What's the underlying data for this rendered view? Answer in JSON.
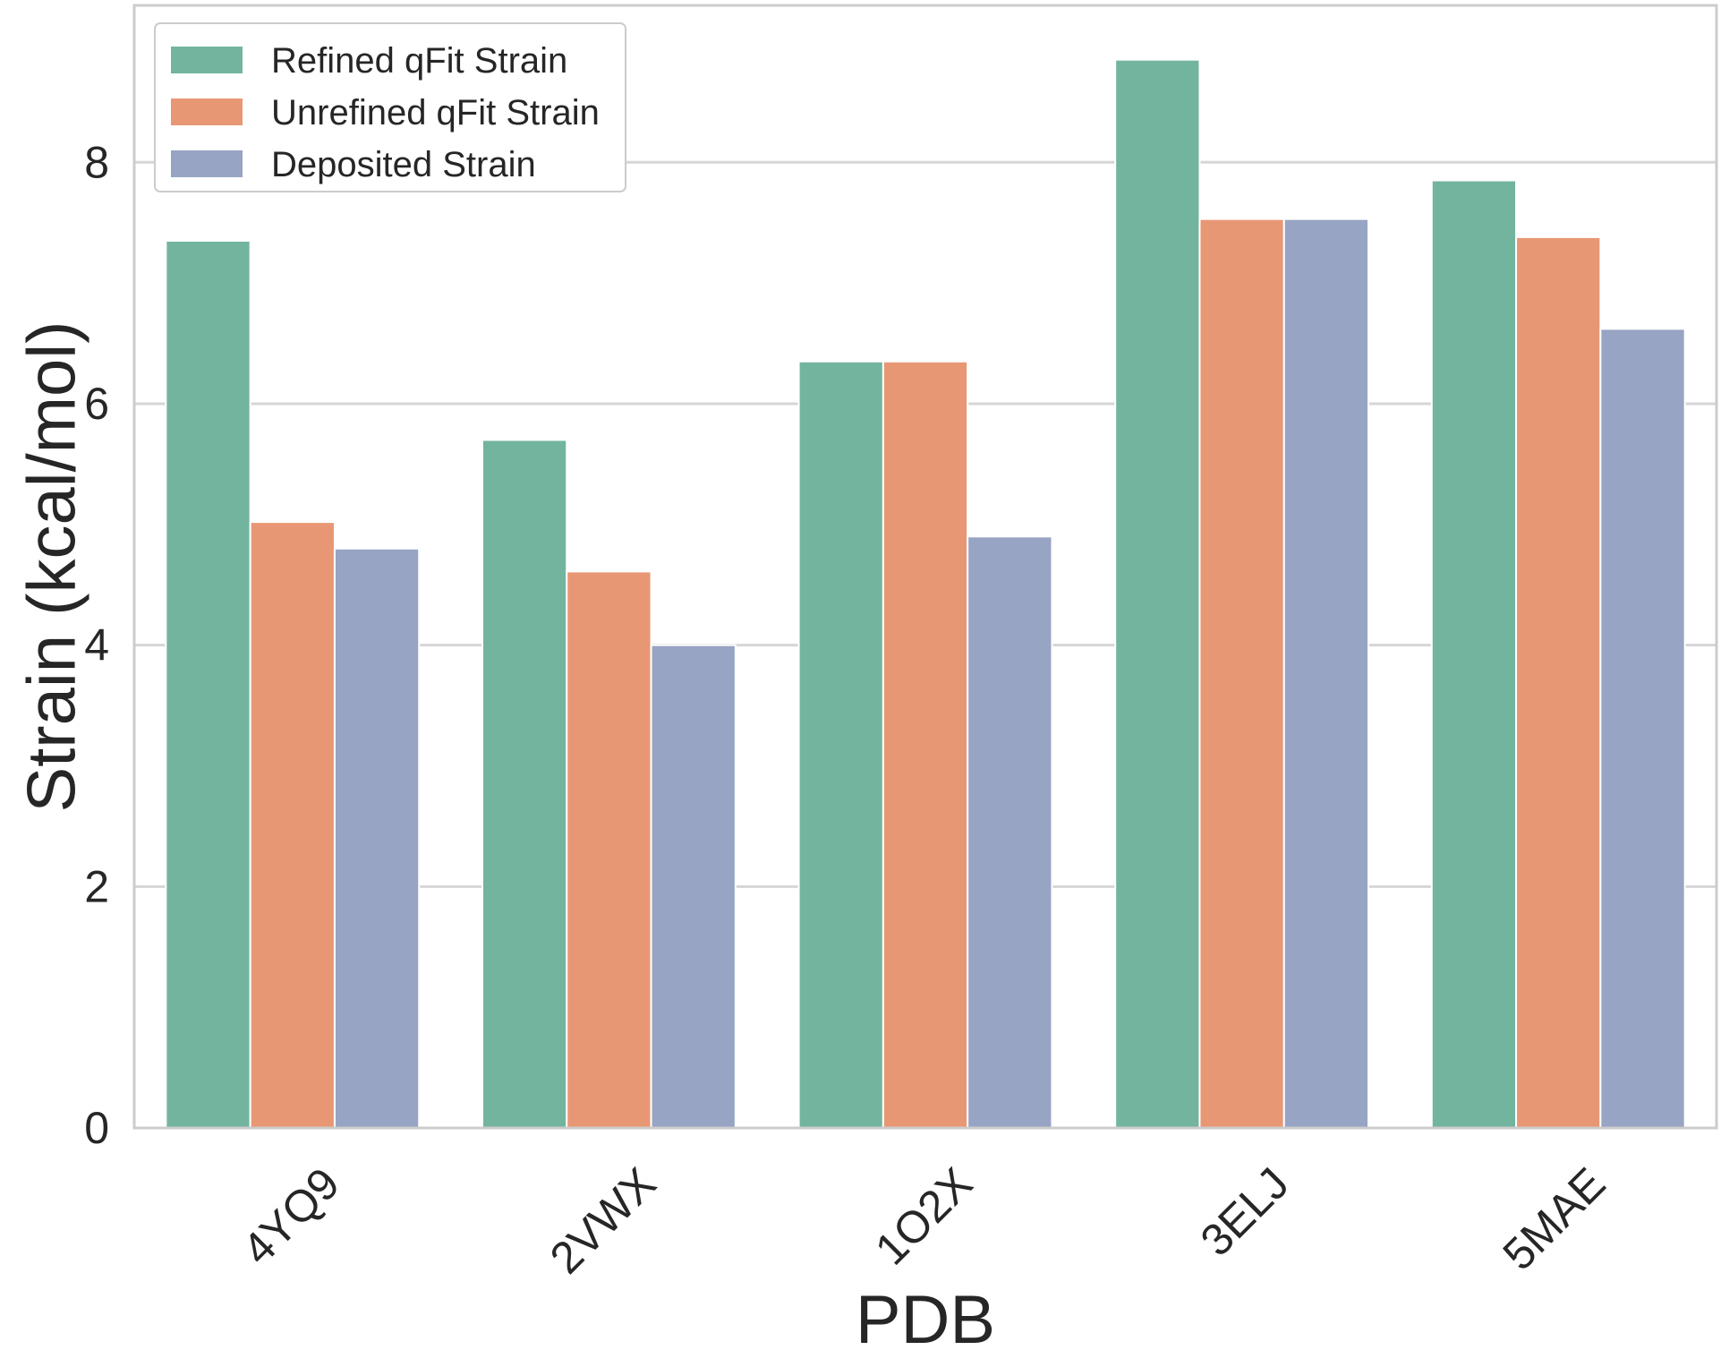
{
  "chart_data": {
    "type": "bar",
    "title": "",
    "xlabel": "PDB",
    "ylabel": "Strain (kcal/mol)",
    "categories": [
      "4YQ9",
      "2VWX",
      "1O2X",
      "3ELJ",
      "5MAE"
    ],
    "series": [
      {
        "name": "Refined qFit Strain",
        "color": "#73b49f",
        "values": [
          7.35,
          5.7,
          6.35,
          8.85,
          7.85
        ]
      },
      {
        "name": "Unrefined qFit Strain",
        "color": "#e89775",
        "values": [
          5.02,
          4.61,
          6.35,
          7.53,
          7.38
        ]
      },
      {
        "name": "Deposited Strain",
        "color": "#97a4c3",
        "values": [
          4.8,
          4.0,
          4.9,
          7.53,
          6.62
        ]
      }
    ],
    "ylim": [
      0,
      9.3
    ],
    "yticks": [
      0,
      2,
      4,
      6,
      8
    ],
    "grid": true,
    "legend_position": "top-left"
  }
}
